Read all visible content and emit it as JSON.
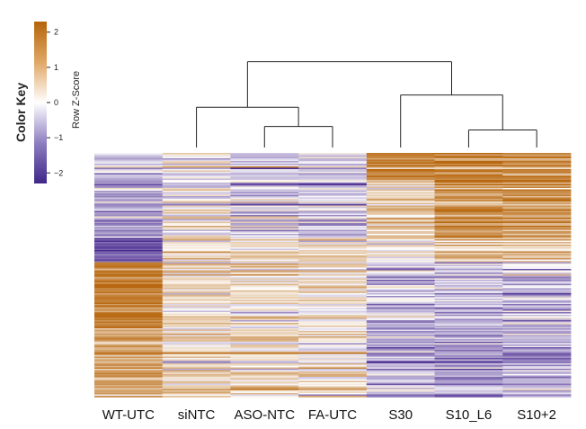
{
  "chart_data": {
    "type": "heatmap",
    "columns": [
      "WT-UTC",
      "siNTC",
      "ASO-NTC",
      "FA-UTC",
      "S30",
      "S10_L6",
      "S10+2"
    ],
    "color_key": {
      "title": "Color Key",
      "axis_label": "Row Z-Score",
      "ticks": [
        "2",
        "1",
        "0",
        "−1",
        "−2"
      ],
      "range": [
        -2.3,
        2.3
      ],
      "low_color": "#4b2d91",
      "mid_color": "#ffffff",
      "high_color": "#b8680f"
    },
    "dendrogram": {
      "merges": [
        {
          "left": "S10_L6",
          "right": "S10+2",
          "height": 1.0
        },
        {
          "left": "ASO-NTC",
          "right": "FA-UTC",
          "height": 1.2
        },
        {
          "left": "siNTC",
          "right": "ASO-NTC+FA-UTC",
          "height": 2.3
        },
        {
          "left": "S30",
          "right": "S10_L6+S10+2",
          "height": 3.0
        },
        {
          "left": "siNTC+ASO-NTC+FA-UTC",
          "right": "S30+S10_L6+S10+2",
          "height": 4.9
        },
        {
          "left": "WT-UTC",
          "right": "rest",
          "height": 7.5
        }
      ]
    },
    "row_blocks": [
      {
        "rows_fraction": 0.11,
        "means": [
          -0.6,
          -0.2,
          -0.5,
          -0.6,
          1.6,
          1.7,
          1.6
        ]
      },
      {
        "rows_fraction": 0.24,
        "means": [
          -0.9,
          0.0,
          -0.4,
          -0.5,
          0.7,
          1.6,
          1.5
        ]
      },
      {
        "rows_fraction": 0.1,
        "means": [
          -1.9,
          0.3,
          0.4,
          0.4,
          0.0,
          0.6,
          0.5
        ]
      },
      {
        "rows_fraction": 0.27,
        "means": [
          1.9,
          0.3,
          0.4,
          0.3,
          -0.6,
          -0.5,
          -0.5
        ]
      },
      {
        "rows_fraction": 0.28,
        "means": [
          1.2,
          0.5,
          0.5,
          0.3,
          -0.7,
          -0.8,
          -0.7
        ]
      }
    ],
    "xlabel": "",
    "ylabel": ""
  }
}
